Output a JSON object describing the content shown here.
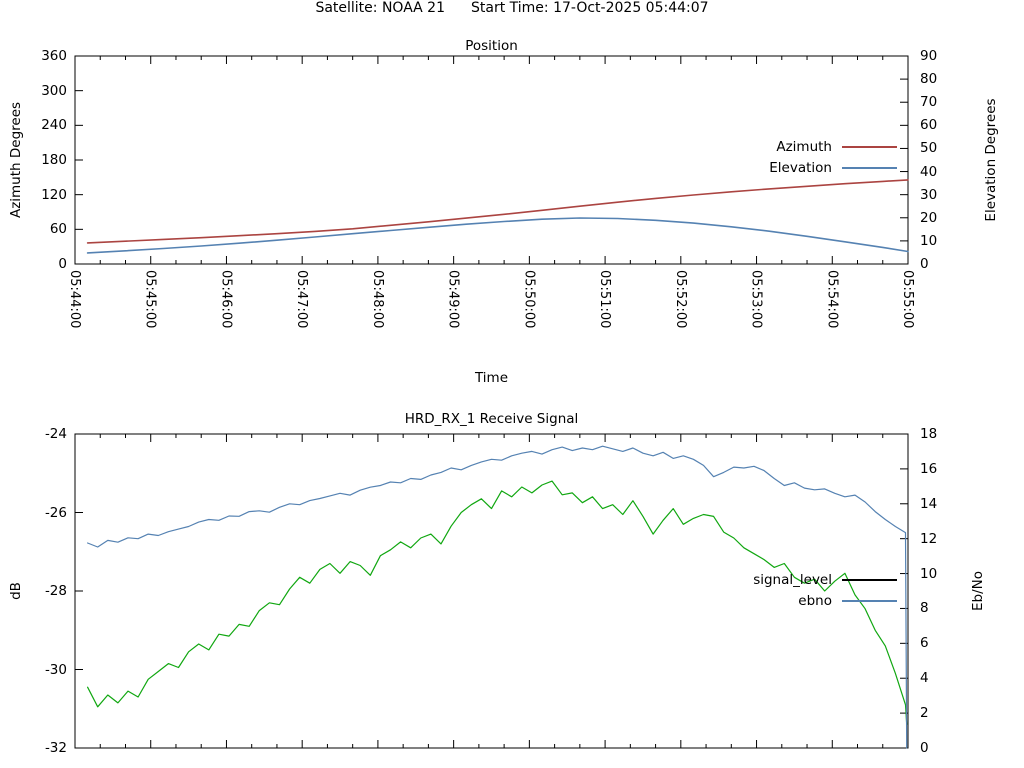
{
  "header": {
    "satellite_label": "Satellite: NOAA 21",
    "start_time_label": "Start Time: 17-Oct-2025 05:44:07"
  },
  "chart_data": [
    {
      "type": "line",
      "title": "Position",
      "xlabel": "Time",
      "ylabel": "Azimuth Degrees",
      "y2label": "Elevation Degrees",
      "grid": false,
      "legend_position": "inside top right",
      "xlim": [
        0,
        660
      ],
      "x_unit": "seconds after 05:44:00",
      "x_tick_seconds": [
        0,
        60,
        120,
        180,
        240,
        300,
        360,
        420,
        480,
        540,
        600,
        660
      ],
      "x_tick_labels": [
        "05:44:00",
        "05:45:00",
        "05:46:00",
        "05:47:00",
        "05:48:00",
        "05:49:00",
        "05:50:00",
        "05:51:00",
        "05:52:00",
        "05:53:00",
        "05:54:00",
        "05:55:00"
      ],
      "ylim": [
        0,
        360
      ],
      "y_ticks": [
        0,
        60,
        120,
        180,
        240,
        300,
        360
      ],
      "y2lim": [
        0,
        90
      ],
      "y2_ticks": [
        0,
        10,
        20,
        30,
        40,
        50,
        60,
        70,
        80,
        90
      ],
      "legend": [
        {
          "label": "Azimuth",
          "color": "#ab4441"
        },
        {
          "label": "Elevation",
          "color": "#5582b2"
        }
      ],
      "series": [
        {
          "name": "Azimuth",
          "axis": "y",
          "color": "#ab4441",
          "x": [
            10,
            40,
            70,
            100,
            130,
            160,
            190,
            220,
            250,
            280,
            310,
            340,
            370,
            400,
            430,
            460,
            490,
            520,
            550,
            580,
            610,
            640,
            660
          ],
          "values": [
            36.5,
            39.5,
            42.5,
            45.5,
            49,
            52.5,
            56.5,
            61,
            67,
            73,
            79.5,
            86,
            93,
            100,
            107,
            113.5,
            119.5,
            125,
            130,
            134.5,
            139,
            143,
            145.5
          ]
        },
        {
          "name": "Elevation",
          "axis": "y2",
          "color": "#5582b2",
          "x": [
            10,
            40,
            70,
            100,
            130,
            160,
            190,
            220,
            250,
            280,
            310,
            340,
            370,
            400,
            430,
            460,
            490,
            520,
            550,
            580,
            610,
            640,
            660
          ],
          "values": [
            4.8,
            5.7,
            6.7,
            7.8,
            9.0,
            10.3,
            11.7,
            13.1,
            14.5,
            15.9,
            17.2,
            18.4,
            19.4,
            19.9,
            19.7,
            18.9,
            17.7,
            16.1,
            14.2,
            12.0,
            9.6,
            7.2,
            5.4
          ]
        }
      ]
    },
    {
      "type": "line",
      "title": "HRD_RX_1 Receive Signal",
      "xlabel": "",
      "ylabel": "dB",
      "y2label": "Eb/No",
      "grid": false,
      "legend_position": "inside right middle",
      "xlim": [
        0,
        660
      ],
      "x_unit": "seconds after 05:44:00",
      "x_tick_seconds": [
        0,
        60,
        120,
        180,
        240,
        300,
        360,
        420,
        480,
        540,
        600,
        660
      ],
      "x_tick_labels": [],
      "ylim": [
        -32,
        -24
      ],
      "y_ticks": [
        -32,
        -30,
        -28,
        -26,
        -24
      ],
      "y2lim": [
        0,
        18
      ],
      "y2_ticks": [
        0,
        2,
        4,
        6,
        8,
        10,
        12,
        14,
        16,
        18
      ],
      "legend": [
        {
          "label": "signal_level",
          "color": "#000000"
        },
        {
          "label": "ebno",
          "color": "#5582b2"
        }
      ],
      "series": [
        {
          "name": "signal_level",
          "axis": "y",
          "color": "#11a711",
          "x": [
            10,
            18,
            26,
            34,
            42,
            50,
            58,
            66,
            74,
            82,
            90,
            98,
            106,
            114,
            122,
            130,
            138,
            146,
            154,
            162,
            170,
            178,
            186,
            194,
            202,
            210,
            218,
            226,
            234,
            242,
            250,
            258,
            266,
            274,
            282,
            290,
            298,
            306,
            314,
            322,
            330,
            338,
            346,
            354,
            362,
            370,
            378,
            386,
            394,
            402,
            410,
            418,
            426,
            434,
            442,
            450,
            458,
            466,
            474,
            482,
            490,
            498,
            506,
            514,
            522,
            530,
            538,
            546,
            554,
            562,
            570,
            578,
            586,
            594,
            602,
            610,
            618,
            626,
            634,
            642,
            650,
            658,
            659
          ],
          "values": [
            -30.45,
            -30.95,
            -30.65,
            -30.85,
            -30.55,
            -30.7,
            -30.25,
            -30.05,
            -29.85,
            -29.95,
            -29.55,
            -29.35,
            -29.5,
            -29.1,
            -29.15,
            -28.85,
            -28.9,
            -28.5,
            -28.3,
            -28.35,
            -27.95,
            -27.65,
            -27.8,
            -27.45,
            -27.3,
            -27.55,
            -27.25,
            -27.35,
            -27.6,
            -27.1,
            -26.95,
            -26.75,
            -26.9,
            -26.65,
            -26.55,
            -26.8,
            -26.35,
            -26.0,
            -25.8,
            -25.65,
            -25.9,
            -25.45,
            -25.6,
            -25.35,
            -25.5,
            -25.3,
            -25.2,
            -25.55,
            -25.5,
            -25.75,
            -25.6,
            -25.9,
            -25.8,
            -26.05,
            -25.7,
            -26.1,
            -26.55,
            -26.2,
            -25.9,
            -26.3,
            -26.15,
            -26.05,
            -26.1,
            -26.5,
            -26.65,
            -26.9,
            -27.05,
            -27.2,
            -27.4,
            -27.3,
            -27.65,
            -27.8,
            -27.7,
            -28.0,
            -27.75,
            -27.55,
            -28.1,
            -28.45,
            -29.0,
            -29.4,
            -30.1,
            -30.9,
            -31.4
          ]
        },
        {
          "name": "ebno",
          "axis": "y2",
          "color": "#5582b2",
          "x": [
            10,
            18,
            26,
            34,
            42,
            50,
            58,
            66,
            74,
            82,
            90,
            98,
            106,
            114,
            122,
            130,
            138,
            146,
            154,
            162,
            170,
            178,
            186,
            194,
            202,
            210,
            218,
            226,
            234,
            242,
            250,
            258,
            266,
            274,
            282,
            290,
            298,
            306,
            314,
            322,
            330,
            338,
            346,
            354,
            362,
            370,
            378,
            386,
            394,
            402,
            410,
            418,
            426,
            434,
            442,
            450,
            458,
            466,
            474,
            482,
            490,
            498,
            506,
            514,
            522,
            530,
            538,
            546,
            554,
            562,
            570,
            578,
            586,
            594,
            602,
            610,
            618,
            626,
            634,
            642,
            650,
            658,
            659
          ],
          "values": [
            11.75,
            11.52,
            11.9,
            11.8,
            12.05,
            12.0,
            12.26,
            12.18,
            12.4,
            12.55,
            12.7,
            12.95,
            13.1,
            13.05,
            13.3,
            13.28,
            13.55,
            13.6,
            13.52,
            13.8,
            14.0,
            13.95,
            14.18,
            14.3,
            14.45,
            14.6,
            14.5,
            14.78,
            14.95,
            15.05,
            15.25,
            15.2,
            15.45,
            15.4,
            15.65,
            15.8,
            16.05,
            15.95,
            16.2,
            16.4,
            16.55,
            16.5,
            16.75,
            16.9,
            17.0,
            16.85,
            17.1,
            17.25,
            17.05,
            17.2,
            17.1,
            17.3,
            17.15,
            17.0,
            17.2,
            16.9,
            16.75,
            16.95,
            16.6,
            16.75,
            16.55,
            16.2,
            15.55,
            15.8,
            16.1,
            16.05,
            16.15,
            15.9,
            15.45,
            15.05,
            15.2,
            14.9,
            14.8,
            14.85,
            14.6,
            14.4,
            14.5,
            14.1,
            13.55,
            13.1,
            12.7,
            12.35,
            0
          ]
        }
      ]
    }
  ]
}
